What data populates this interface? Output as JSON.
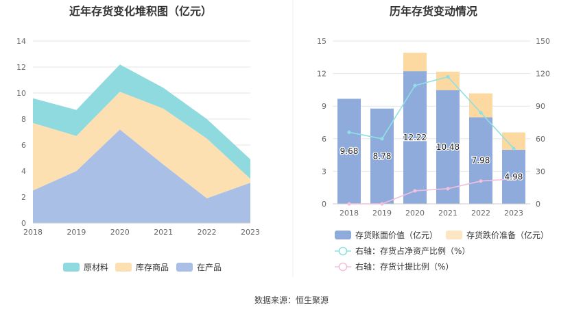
{
  "source": "数据来源：恒生聚源",
  "colors": {
    "raw": "#8fdadf",
    "finished": "#fde0b1",
    "wip": "#aabfe6",
    "bar_main": "#8fabdc",
    "bar_prov": "#fcd9a0",
    "line_ratio": "#8ee0e4",
    "line_prov": "#f2bfdc"
  },
  "chart_data": [
    {
      "type": "area",
      "title": "近年存货变化堆积图（亿元）",
      "x": [
        "2018",
        "2019",
        "2020",
        "2021",
        "2022",
        "2023"
      ],
      "ylim": [
        0,
        14
      ],
      "yticks": [
        "0",
        "2",
        "4",
        "6",
        "8",
        "10",
        "12",
        "14"
      ],
      "stacked": true,
      "series": [
        {
          "name": "在产品",
          "values": [
            2.5,
            4.0,
            7.2,
            4.5,
            1.9,
            3.1
          ]
        },
        {
          "name": "库存商品",
          "values": [
            5.2,
            2.7,
            2.9,
            4.3,
            4.6,
            0.3
          ]
        },
        {
          "name": "原材料",
          "values": [
            1.9,
            2.0,
            2.1,
            1.6,
            1.5,
            1.5
          ]
        }
      ],
      "legend": [
        "原材料",
        "库存商品",
        "在产品"
      ],
      "legend_position": "bottom"
    },
    {
      "type": "bar",
      "title": "历年存货变动情况",
      "categories": [
        "2018",
        "2019",
        "2020",
        "2021",
        "2022",
        "2023"
      ],
      "ylim_left": [
        0,
        15
      ],
      "yticks_left": [
        "0",
        "3",
        "6",
        "9",
        "12",
        "15"
      ],
      "ylim_right": [
        0,
        150
      ],
      "yticks_right": [
        "0",
        "30",
        "60",
        "90",
        "120",
        "150"
      ],
      "bar_series": [
        {
          "name": "存货账面价值（亿元）",
          "values": [
            9.68,
            8.78,
            12.22,
            10.48,
            7.98,
            4.98
          ],
          "labels": [
            "9.68",
            "8.78",
            "12.22",
            "10.48",
            "7.98",
            "4.98"
          ]
        },
        {
          "name": "存货跌价准备（亿元）",
          "values": [
            0,
            0,
            1.7,
            1.7,
            2.2,
            1.6
          ]
        }
      ],
      "line_series": [
        {
          "name": "右轴：存货占净资产比例（%）",
          "axis": "right",
          "values": [
            66,
            60,
            109,
            117,
            84,
            51
          ]
        },
        {
          "name": "右轴：存货计提比例（%）",
          "axis": "right",
          "values": [
            0,
            0,
            12,
            14,
            21,
            23
          ]
        }
      ],
      "legend_position": "bottom"
    }
  ]
}
